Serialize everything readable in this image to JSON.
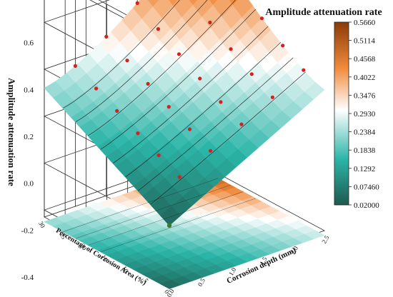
{
  "chart_data": {
    "type": "surface3d",
    "title": "Amplitude attenuation rate",
    "zlabel": "Amplitude attenuation rate",
    "xlabel": "Corrosion depth (mm)",
    "ylabel": "Percentage of Corrosion Area (%)",
    "z_ticks": [
      "-0.4",
      "-0.2",
      "0.0",
      "0.2",
      "0.4",
      "0.6"
    ],
    "x_ticks": [
      "0.0",
      "0.5",
      "1.0",
      "1.5",
      "2.0",
      "2.5"
    ],
    "y_ticks": [
      "0",
      "5",
      "10",
      "15",
      "20",
      "25",
      "30"
    ],
    "zlim": [
      -0.45,
      0.62
    ],
    "xlim": [
      0,
      2.5
    ],
    "ylim": [
      0,
      30
    ],
    "colorbar": {
      "labels": [
        "0.5660",
        "0.5114",
        "0.4568",
        "0.4022",
        "0.3476",
        "0.2930",
        "0.2384",
        "0.1838",
        "0.1292",
        "0.07460",
        "0.02000"
      ],
      "range": [
        0.02,
        0.566
      ],
      "colors": {
        "low": "#1f5a4e",
        "mid_low": "#2bb5a8",
        "mid": "#ffffff",
        "mid_high": "#f08a3c",
        "high": "#8a3a08"
      }
    },
    "grid": true,
    "marker_color": "#d42020"
  }
}
